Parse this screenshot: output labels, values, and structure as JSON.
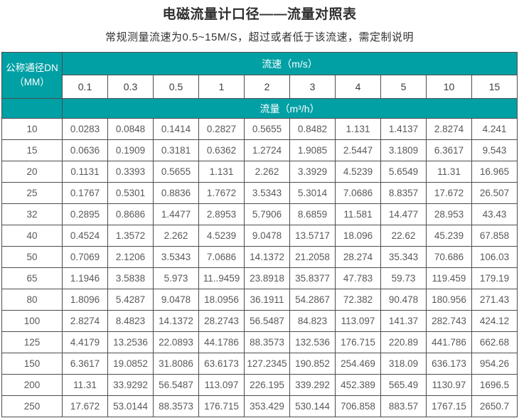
{
  "title": "电磁流量计口径——流量对照表",
  "subtitle": "常规测量流速为0.5~15M/S，超过或者低于该流速，需定制说明",
  "colors": {
    "header_teal": "#00A0A5",
    "border": "#4d4d4d",
    "data_text": "#58595B"
  },
  "table": {
    "corner": {
      "line1": "公称通径DN",
      "line2": "（MM）"
    },
    "speed_header": "流速（m/s）",
    "flow_header": "流量（m³/h）",
    "speeds": [
      "0.1",
      "0.3",
      "0.5",
      "1",
      "2",
      "3",
      "4",
      "5",
      "10",
      "15"
    ],
    "rows": [
      {
        "dn": "10",
        "values": [
          "0.0283",
          "0.0848",
          "0.1414",
          "0.2827",
          "0.5655",
          "0.8482",
          "1.131",
          "1.4137",
          "2.8274",
          "4.241"
        ]
      },
      {
        "dn": "15",
        "values": [
          "0.0636",
          "0.1909",
          "0.3181",
          "0.6362",
          "1.2724",
          "1.9085",
          "2.5447",
          "3.1809",
          "6.3617",
          "9.543"
        ]
      },
      {
        "dn": "20",
        "values": [
          "0.1131",
          "0.3393",
          "0.5655",
          "1.131",
          "2.262",
          "3.3929",
          "4.5239",
          "5.6549",
          "11.31",
          "16.965"
        ]
      },
      {
        "dn": "25",
        "values": [
          "0.1767",
          "0.5301",
          "0.8836",
          "1.7672",
          "3.5343",
          "5.3014",
          "7.0686",
          "8.8357",
          "17.672",
          "26.507"
        ]
      },
      {
        "dn": "32",
        "values": [
          "0.2895",
          "0.8686",
          "1.4477",
          "2.8953",
          "5.7906",
          "8.6859",
          "11.581",
          "14.477",
          "28.953",
          "43.43"
        ]
      },
      {
        "dn": "40",
        "values": [
          "0.4524",
          "1.3572",
          "2.262",
          "4.5239",
          "9.0478",
          "13.5717",
          "18.096",
          "22.62",
          "45.239",
          "67.858"
        ]
      },
      {
        "dn": "50",
        "values": [
          "0.7069",
          "2.1206",
          "3.5343",
          "7.0686",
          "14.1372",
          "21.2058",
          "28.274",
          "35.343",
          "70.686",
          "106.03"
        ]
      },
      {
        "dn": "65",
        "values": [
          "1.1946",
          "3.5838",
          "5.973",
          "11..9459",
          "23.8918",
          "35.8377",
          "47.783",
          "59.73",
          "119.459",
          "179.19"
        ]
      },
      {
        "dn": "80",
        "values": [
          "1.8096",
          "5.4287",
          "9.0478",
          "18.0956",
          "36.1911",
          "54.2867",
          "72.382",
          "90.478",
          "180.956",
          "271.43"
        ]
      },
      {
        "dn": "100",
        "values": [
          "2.8274",
          "8.4823",
          "14.1372",
          "28.2743",
          "56.5487",
          "84.823",
          "113.097",
          "141.37",
          "282.743",
          "424.12"
        ]
      },
      {
        "dn": "125",
        "values": [
          "4.4179",
          "13.2536",
          "22.0893",
          "44.1786",
          "88.3573",
          "132.536",
          "176.715",
          "220.89",
          "441.786",
          "662.68"
        ]
      },
      {
        "dn": "150",
        "values": [
          "6.3617",
          "19.0852",
          "31.8086",
          "63.6173",
          "127.2345",
          "190.852",
          "254.469",
          "318.09",
          "636.173",
          "954.26"
        ]
      },
      {
        "dn": "200",
        "values": [
          "11.31",
          "33.9292",
          "56.5487",
          "113.097",
          "226.195",
          "339.292",
          "452.389",
          "565.49",
          "1130.97",
          "1696.5"
        ]
      },
      {
        "dn": "250",
        "values": [
          "17.672",
          "53.0144",
          "88.3573",
          "176.715",
          "353.429",
          "530.144",
          "706.858",
          "883.57",
          "1767.15",
          "2650.7"
        ]
      }
    ]
  }
}
